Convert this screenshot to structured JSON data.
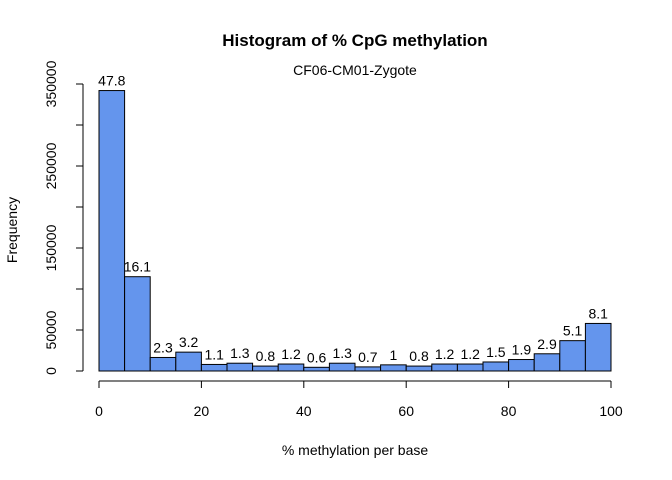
{
  "chart_data": {
    "type": "bar",
    "title": "Histogram of % CpG methylation",
    "subtitle": "CF06-CM01-Zygote",
    "xlabel": "% methylation per base",
    "ylabel": "Frequency",
    "bin_edges": [
      0,
      5,
      10,
      15,
      20,
      25,
      30,
      35,
      40,
      45,
      50,
      55,
      60,
      65,
      70,
      75,
      80,
      85,
      90,
      95,
      100
    ],
    "values": [
      342000,
      115000,
      16500,
      23000,
      8000,
      9500,
      6000,
      8500,
      4500,
      9500,
      5000,
      7500,
      6000,
      8500,
      8500,
      11000,
      14000,
      21000,
      37000,
      58000
    ],
    "bar_labels": [
      "47.8",
      "16.1",
      "2.3",
      "3.2",
      "1.1",
      "1.3",
      "0.8",
      "1.2",
      "0.6",
      "1.3",
      "0.7",
      "1",
      "0.8",
      "1.2",
      "1.2",
      "1.5",
      "1.9",
      "2.9",
      "5.1",
      "8.1"
    ],
    "xlim": [
      0,
      100
    ],
    "ylim": [
      0,
      350000
    ],
    "x_ticks": [
      0,
      20,
      40,
      60,
      80,
      100
    ],
    "x_tick_labels": [
      "0",
      "20",
      "40",
      "60",
      "80",
      "100"
    ],
    "y_ticks": [
      0,
      50000,
      100000,
      150000,
      200000,
      250000,
      300000,
      350000
    ],
    "y_tick_labels": [
      "0",
      "50000",
      "150000",
      "250000",
      "350000"
    ],
    "y_labeled_ticks": [
      0,
      50000,
      150000,
      250000,
      350000
    ],
    "bar_color": "#6495ED",
    "grid": false,
    "legend": "none"
  }
}
